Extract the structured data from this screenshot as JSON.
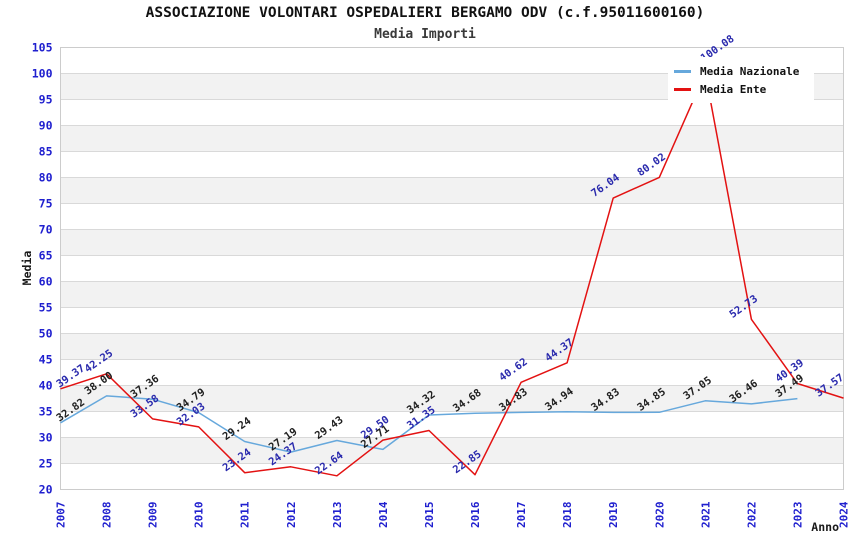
{
  "title": "ASSOCIAZIONE VOLONTARI OSPEDALIERI BERGAMO ODV (c.f.95011600160)",
  "subtitle": "Media Importi",
  "legend": [
    {
      "label": "Media Nazionale",
      "color": "#66a8dc"
    },
    {
      "label": "Media Ente",
      "color": "#e31212"
    }
  ],
  "chart_data": {
    "type": "line",
    "title": "ASSOCIAZIONE VOLONTARI OSPEDALIERI BERGAMO ODV (c.f.95011600160)",
    "subtitle": "Media Importi",
    "xlabel": "Anno",
    "ylabel": "Media",
    "ylim": [
      20,
      105
    ],
    "ytick_step": 5,
    "grid": "horizontal-bands",
    "legend_position": "top-right",
    "x": [
      2007,
      2008,
      2009,
      2010,
      2011,
      2012,
      2013,
      2014,
      2015,
      2016,
      2017,
      2018,
      2019,
      2020,
      2021,
      2022,
      2023,
      2024
    ],
    "series": [
      {
        "name": "Media Nazionale",
        "color": "#66a8dc",
        "label_color": "#1f1f1f",
        "values": [
          32.82,
          38.0,
          37.36,
          34.79,
          29.24,
          27.19,
          29.43,
          27.71,
          34.32,
          34.68,
          34.83,
          34.94,
          34.83,
          34.85,
          37.05,
          36.46,
          37.49,
          null
        ]
      },
      {
        "name": "Media Ente",
        "color": "#e31212",
        "label_color": "#2a2aad",
        "values": [
          39.37,
          42.25,
          33.58,
          32.03,
          23.24,
          24.37,
          22.64,
          29.5,
          31.35,
          22.85,
          40.62,
          44.37,
          76.04,
          80.02,
          100.08,
          52.73,
          40.39,
          37.57
        ]
      }
    ]
  },
  "colors": {
    "tick_label": "#2020cf",
    "band_gray": "#f2f2f2",
    "band_white": "#ffffff",
    "gridline": "#d9d9d9",
    "plot_border": "#cccccc",
    "axis_title": "#1a1a1a"
  }
}
